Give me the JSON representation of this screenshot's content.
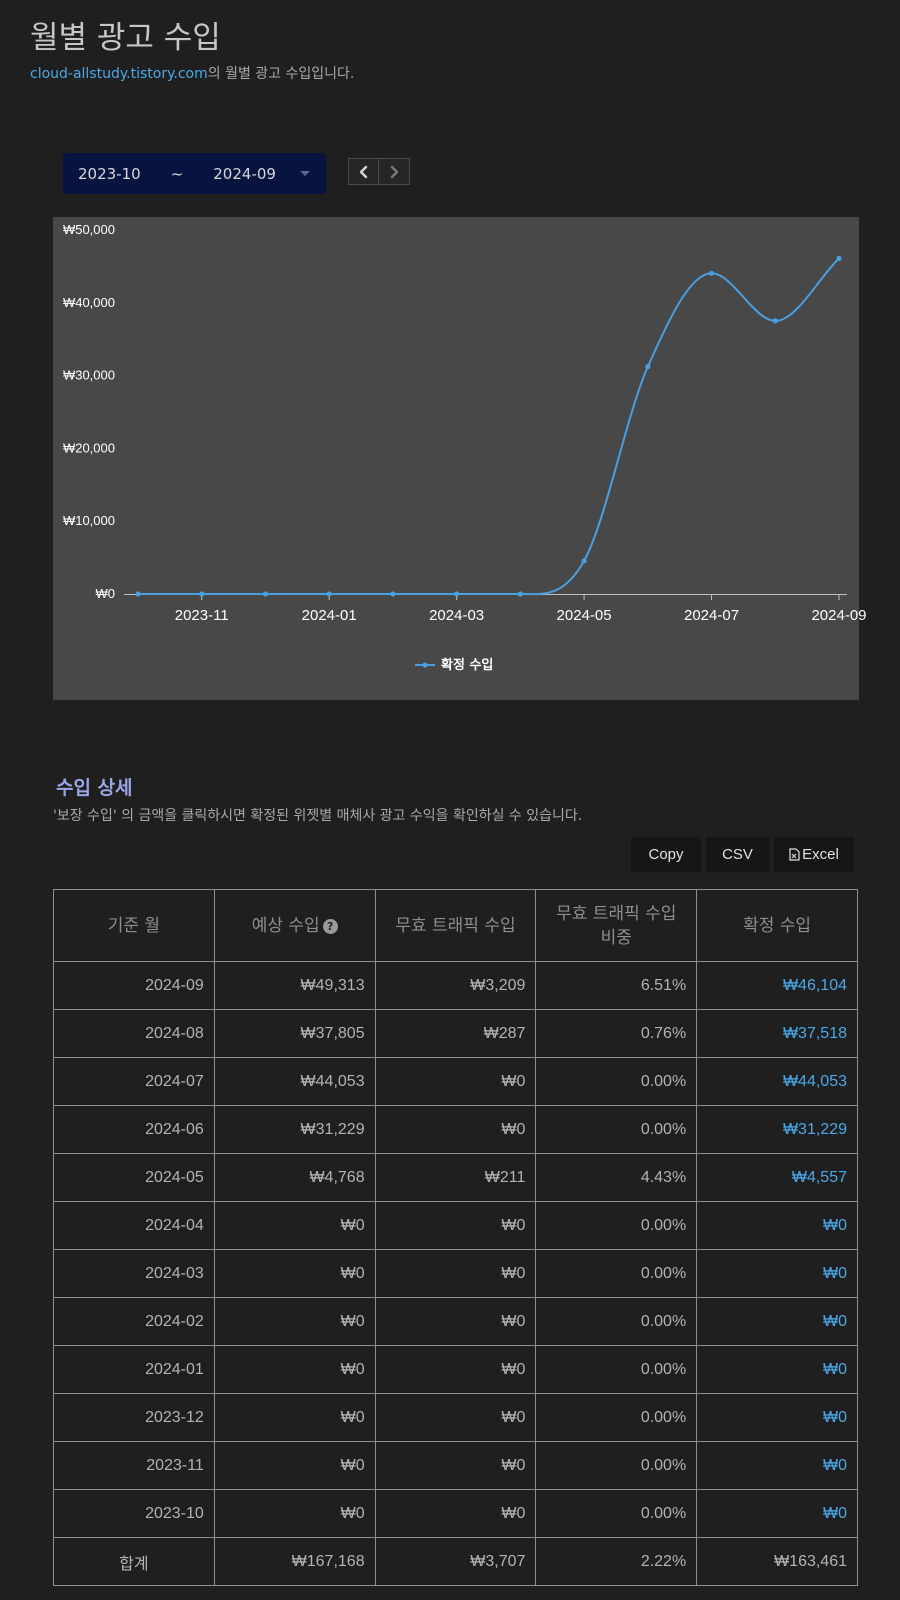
{
  "page": {
    "title": "월별 광고 수입",
    "site_link": "cloud-allstudy.tistory.com",
    "subtitle_suffix": "의 월별 광고 수입입니다."
  },
  "range": {
    "start": "2023-10",
    "separator": "~",
    "end": "2024-09",
    "prev_icon": "chevron-left-icon",
    "next_icon": "chevron-right-icon"
  },
  "chart_data": {
    "type": "line",
    "x": [
      "2023-10",
      "2023-11",
      "2023-12",
      "2024-01",
      "2024-02",
      "2024-03",
      "2024-04",
      "2024-05",
      "2024-06",
      "2024-07",
      "2024-08",
      "2024-09"
    ],
    "series": [
      {
        "name": "확정 수입",
        "color": "#4a9fe0",
        "values": [
          0,
          0,
          0,
          0,
          0,
          0,
          0,
          4557,
          31229,
          44053,
          37518,
          46104
        ]
      }
    ],
    "ylim": [
      0,
      50000
    ],
    "yticks": [
      0,
      10000,
      20000,
      30000,
      40000,
      50000
    ],
    "ytick_labels": [
      "₩0",
      "₩10,000",
      "₩20,000",
      "₩30,000",
      "₩40,000",
      "₩50,000"
    ],
    "xtick_labels": [
      "2023-11",
      "2024-01",
      "2024-03",
      "2024-05",
      "2024-07",
      "2024-09"
    ],
    "legend": "bottom-center",
    "grid": false,
    "background": "#484848"
  },
  "details": {
    "title": "수입 상세",
    "description": "'보장 수입' 의 금액을 클릭하시면 확정된 위젯별 매체사 광고 수익을 확인하실 수 있습니다.",
    "export": {
      "copy": "Copy",
      "csv": "CSV",
      "excel": "Excel"
    },
    "columns": [
      "기준 월",
      "예상 수입",
      "무효 트래픽 수입",
      "무효 트래픽 수입 비중",
      "확정 수입"
    ],
    "rows": [
      {
        "month": "2024-09",
        "estimated": "₩49,313",
        "invalid": "₩3,209",
        "ratio": "6.51%",
        "confirmed": "₩46,104"
      },
      {
        "month": "2024-08",
        "estimated": "₩37,805",
        "invalid": "₩287",
        "ratio": "0.76%",
        "confirmed": "₩37,518"
      },
      {
        "month": "2024-07",
        "estimated": "₩44,053",
        "invalid": "₩0",
        "ratio": "0.00%",
        "confirmed": "₩44,053"
      },
      {
        "month": "2024-06",
        "estimated": "₩31,229",
        "invalid": "₩0",
        "ratio": "0.00%",
        "confirmed": "₩31,229"
      },
      {
        "month": "2024-05",
        "estimated": "₩4,768",
        "invalid": "₩211",
        "ratio": "4.43%",
        "confirmed": "₩4,557"
      },
      {
        "month": "2024-04",
        "estimated": "₩0",
        "invalid": "₩0",
        "ratio": "0.00%",
        "confirmed": "₩0"
      },
      {
        "month": "2024-03",
        "estimated": "₩0",
        "invalid": "₩0",
        "ratio": "0.00%",
        "confirmed": "₩0"
      },
      {
        "month": "2024-02",
        "estimated": "₩0",
        "invalid": "₩0",
        "ratio": "0.00%",
        "confirmed": "₩0"
      },
      {
        "month": "2024-01",
        "estimated": "₩0",
        "invalid": "₩0",
        "ratio": "0.00%",
        "confirmed": "₩0"
      },
      {
        "month": "2023-12",
        "estimated": "₩0",
        "invalid": "₩0",
        "ratio": "0.00%",
        "confirmed": "₩0"
      },
      {
        "month": "2023-11",
        "estimated": "₩0",
        "invalid": "₩0",
        "ratio": "0.00%",
        "confirmed": "₩0"
      },
      {
        "month": "2023-10",
        "estimated": "₩0",
        "invalid": "₩0",
        "ratio": "0.00%",
        "confirmed": "₩0"
      }
    ],
    "total": {
      "label": "합계",
      "estimated": "₩167,168",
      "invalid": "₩3,707",
      "ratio": "2.22%",
      "confirmed": "₩163,461"
    }
  }
}
